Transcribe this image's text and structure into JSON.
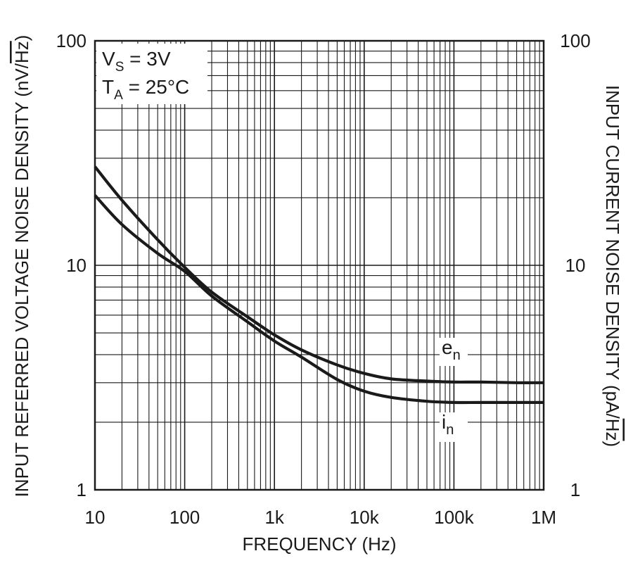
{
  "chart_data": {
    "type": "line",
    "x_scale": "log",
    "y_scale": "log",
    "xlim": [
      10,
      1000000
    ],
    "ylim": [
      1,
      100
    ],
    "xlabel": "FREQUENCY (Hz)",
    "ylabel_left": {
      "main": "INPUT REFERRED VOLTAGE NOISE DENSITY (nV/",
      "sqrt": "Hz",
      "close": ")"
    },
    "ylabel_right": {
      "main": "INPUT CURRENT NOISE DENSITY (pA/",
      "sqrt": "Hz",
      "close": ")"
    },
    "x_tick_labels": [
      "10",
      "100",
      "1k",
      "10k",
      "100k",
      "1M"
    ],
    "y_tick_labels_left": [
      "100",
      "10",
      "1"
    ],
    "y_tick_labels_right": [
      "100",
      "10",
      "1"
    ],
    "grid": true,
    "annotation": {
      "vs": {
        "main": "V",
        "sub": "S",
        "rest": " = 3V"
      },
      "ta": {
        "main": "T",
        "sub": "A",
        "rest": " = 25°C"
      }
    },
    "series": [
      {
        "name": "e_n",
        "label_main": "e",
        "label_sub": "n",
        "x": [
          10,
          20,
          50,
          100,
          200,
          500,
          1000,
          2000,
          5000,
          10000,
          20000,
          50000,
          100000,
          200000,
          500000,
          1000000
        ],
        "y": [
          27.5,
          19.5,
          13.0,
          9.8,
          7.6,
          5.9,
          4.9,
          4.2,
          3.6,
          3.3,
          3.12,
          3.05,
          3.02,
          3.02,
          3.0,
          3.0
        ]
      },
      {
        "name": "i_n",
        "label_main": "i",
        "label_sub": "n",
        "x": [
          10,
          20,
          50,
          100,
          200,
          500,
          1000,
          2000,
          5000,
          10000,
          20000,
          50000,
          100000,
          200000,
          500000,
          1000000
        ],
        "y": [
          20.5,
          15.2,
          11.3,
          9.4,
          7.3,
          5.6,
          4.6,
          3.9,
          3.1,
          2.75,
          2.58,
          2.48,
          2.45,
          2.45,
          2.45,
          2.45
        ]
      }
    ],
    "colors": {
      "line": "#1a1a1a",
      "grid": "#1a1a1a",
      "background": "#ffffff"
    }
  }
}
